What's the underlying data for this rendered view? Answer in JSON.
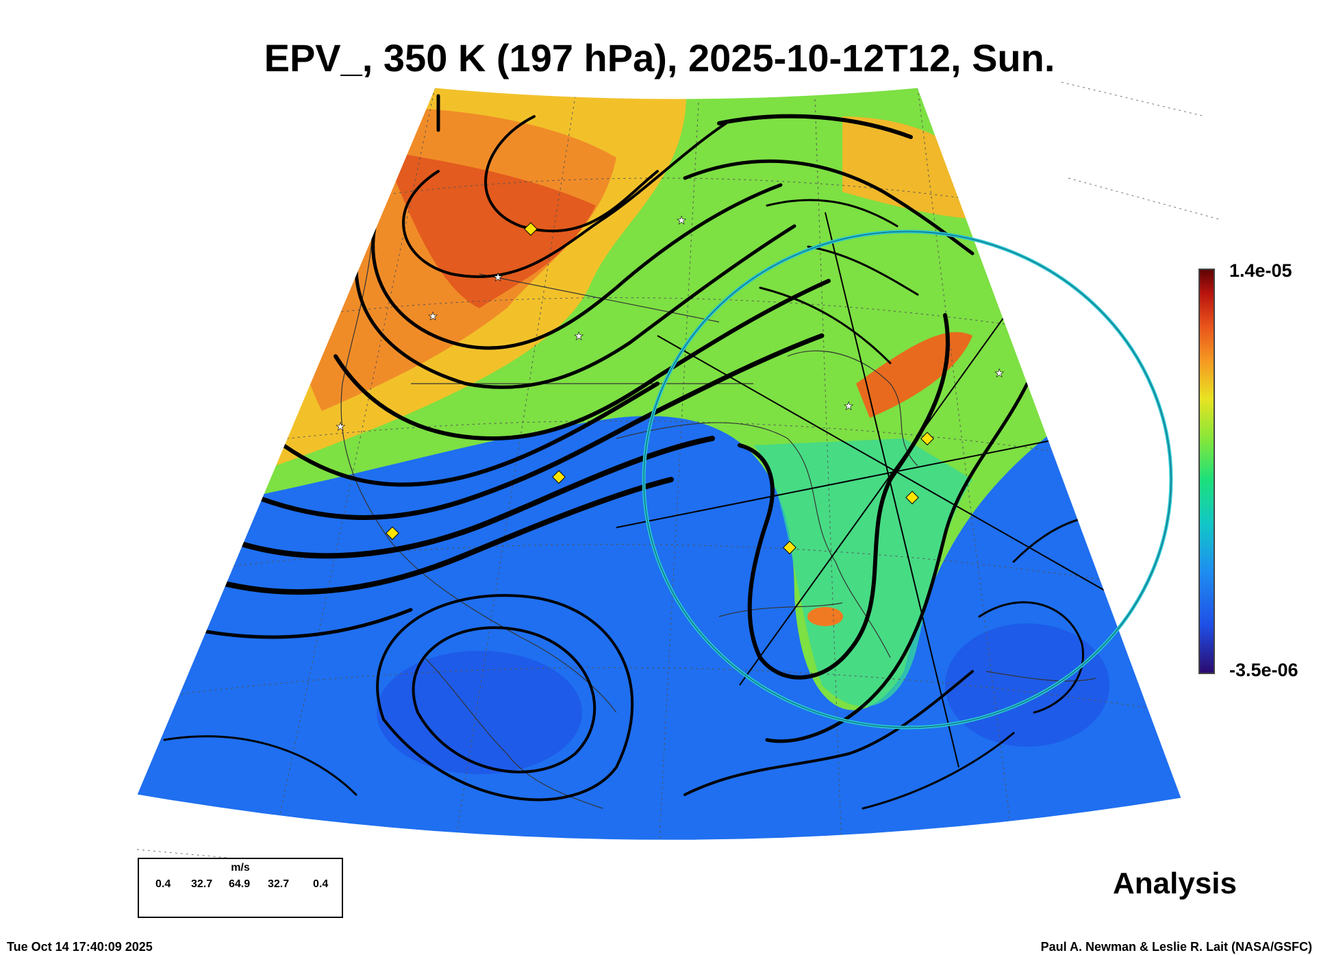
{
  "title": "EPV_, 350 K (197 hPa), 2025-10-12T12, Sun.",
  "colorbar": {
    "max_label": "1.4e-05",
    "min_label": "-3.5e-06",
    "colors": [
      "#2b0a6e",
      "#1f4fe6",
      "#1f8df0",
      "#12c7c7",
      "#1de07a",
      "#86e63a",
      "#e8e322",
      "#f59b22",
      "#e8531c",
      "#b8140e",
      "#5c0404"
    ]
  },
  "wind_legend": {
    "unit": "m/s",
    "values": [
      "0.4",
      "32.7",
      "64.9",
      "32.7",
      "0.4"
    ]
  },
  "product_label": "Analysis",
  "footer": {
    "timestamp": "Tue Oct 14 17:40:09 2025",
    "credit": "Paul A. Newman & Leslie R. Lait (NASA/GSFC)"
  },
  "colors": {
    "circle": "#29c4d0",
    "high_pv": "#e8531c",
    "low_pv": "#1f4fe6",
    "streamline": "#000000",
    "marker_diamond": "#ffe400",
    "marker_star": "#ffffff"
  }
}
